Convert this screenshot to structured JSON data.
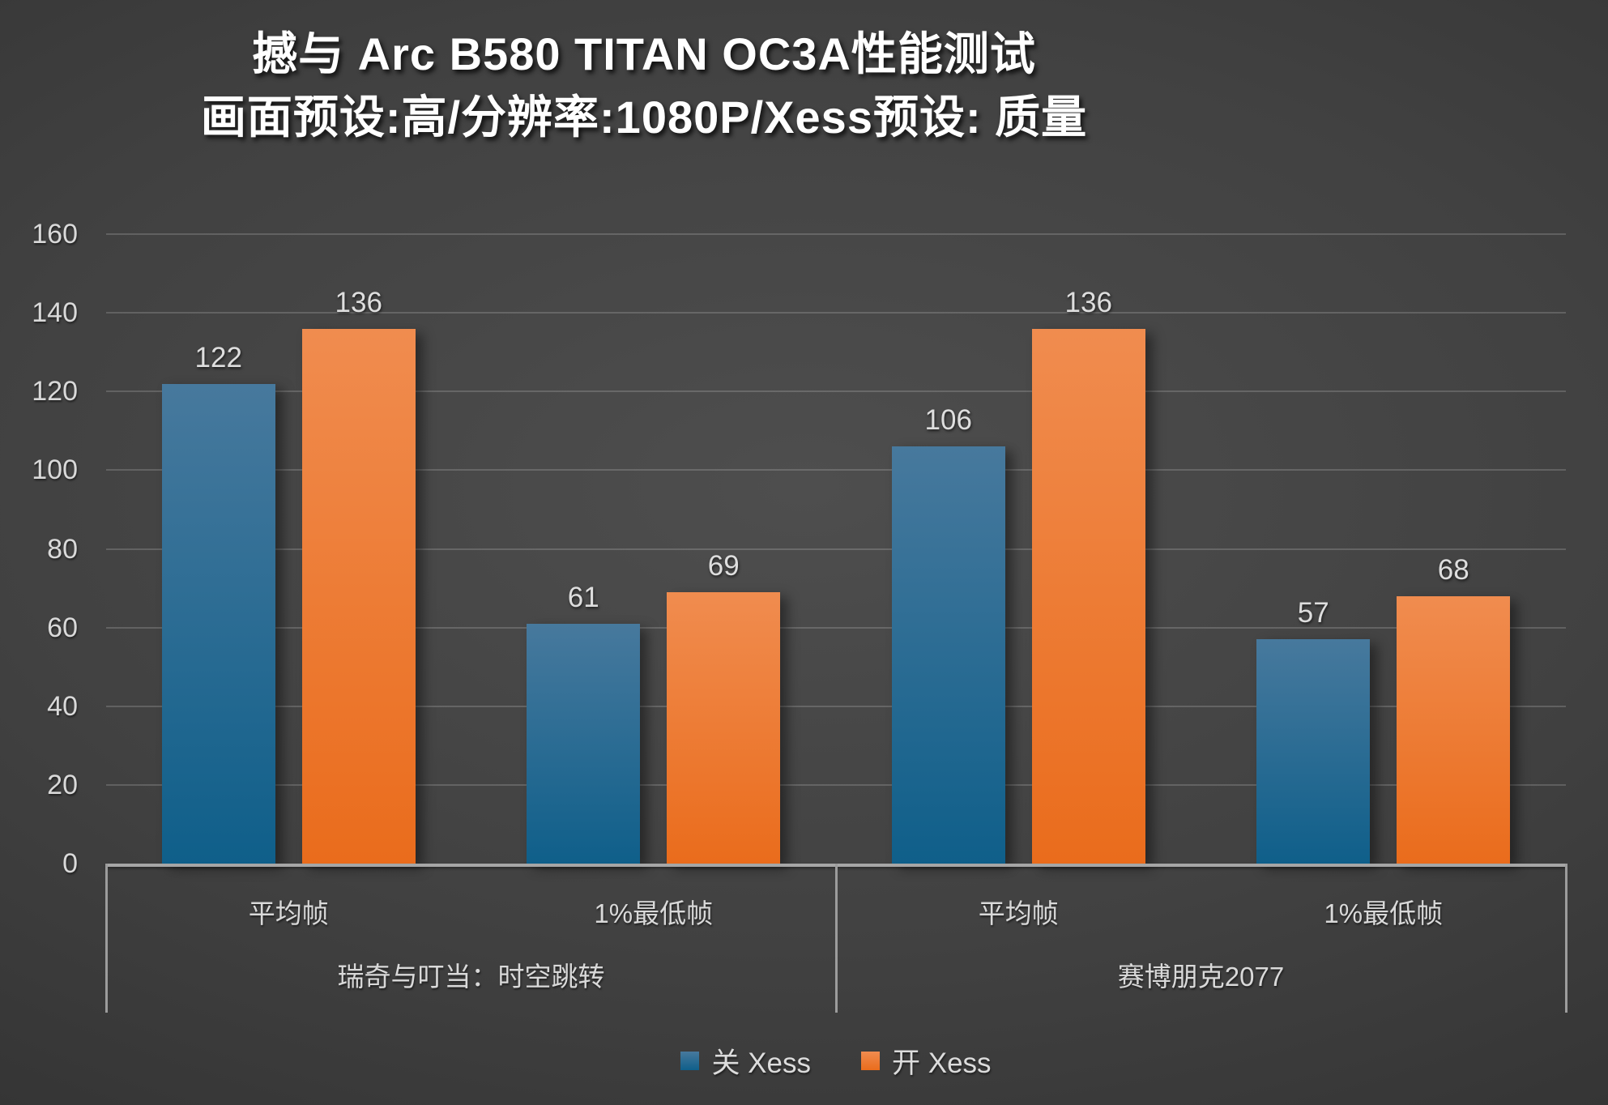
{
  "title": {
    "line1": "撼与 Arc B580 TITAN OC3A性能测试",
    "line2": "画面预设:高/分辨率:1080P/Xess预设: 质量"
  },
  "chart_data": {
    "type": "bar",
    "title": "撼与 Arc B580 TITAN OC3A性能测试",
    "subtitle": "画面预设:高/分辨率:1080P/Xess预设: 质量",
    "ylim": [
      0,
      160
    ],
    "yticks": [
      0,
      20,
      40,
      60,
      80,
      100,
      120,
      140,
      160
    ],
    "grid": true,
    "legend_position": "bottom",
    "categories": [
      "平均帧",
      "1%最低帧",
      "平均帧",
      "1%最低帧"
    ],
    "groups": [
      {
        "label": "瑞奇与叮当：时空跳转",
        "category_indexes": [
          0,
          1
        ]
      },
      {
        "label": "赛博朋克2077",
        "category_indexes": [
          2,
          3
        ]
      }
    ],
    "series": [
      {
        "name": "关 Xess",
        "color": "#1d6591",
        "color_top": "#47799d",
        "color_bottom": "#0f5f8a",
        "values": [
          122,
          61,
          106,
          57
        ]
      },
      {
        "name": "开 Xess",
        "color": "#ec7127",
        "color_top": "#f08c4f",
        "color_bottom": "#ea6c1c",
        "values": [
          136,
          69,
          136,
          68
        ]
      }
    ]
  },
  "colors": {
    "background_center": "#4e4e4e",
    "background_edge": "#232323",
    "text": "#d9d9d9",
    "title_text": "#ffffff",
    "gridline": "rgba(255,255,255,0.17)",
    "axis_frame": "#a6a6a6"
  }
}
